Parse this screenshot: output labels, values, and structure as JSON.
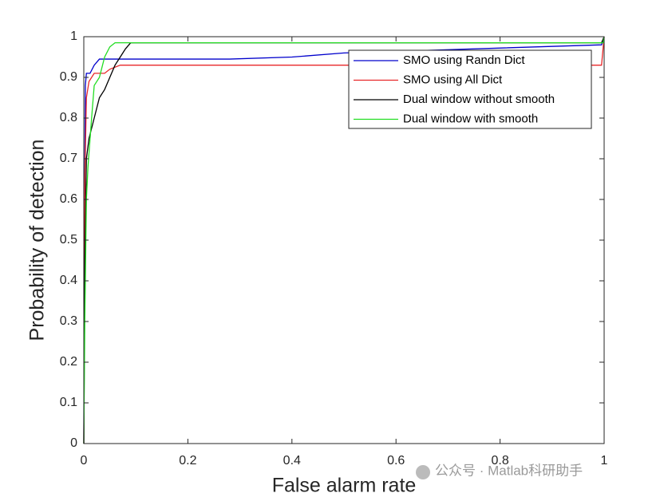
{
  "chart_data": {
    "type": "line",
    "xlabel": "False alarm rate",
    "ylabel": "Probability of detection",
    "xlim": [
      0,
      1
    ],
    "ylim": [
      0,
      1
    ],
    "xticks": [
      0,
      0.2,
      0.4,
      0.6,
      0.8,
      1
    ],
    "yticks": [
      0,
      0.1,
      0.2,
      0.3,
      0.4,
      0.5,
      0.6,
      0.7,
      0.8,
      0.9,
      1
    ],
    "grid": false,
    "legend": "northeast",
    "watermark": "公众号 · Matlab科研助手",
    "series": [
      {
        "name": "SMO using Randn Dict",
        "color": "#0000cc",
        "x": [
          0,
          0.001,
          0.003,
          0.005,
          0.012,
          0.02,
          0.03,
          0.28,
          0.4,
          0.5,
          0.995,
          1
        ],
        "values": [
          0,
          0.5,
          0.88,
          0.91,
          0.91,
          0.93,
          0.945,
          0.945,
          0.95,
          0.96,
          0.98,
          1
        ]
      },
      {
        "name": "SMO using All Dict",
        "color": "#e8282a",
        "x": [
          0,
          0.002,
          0.005,
          0.01,
          0.02,
          0.04,
          0.05,
          0.07,
          0.995,
          1
        ],
        "values": [
          0,
          0.65,
          0.85,
          0.89,
          0.91,
          0.91,
          0.92,
          0.93,
          0.93,
          1
        ]
      },
      {
        "name": "Dual window without smooth",
        "color": "#000000",
        "x": [
          0,
          0.002,
          0.005,
          0.01,
          0.02,
          0.03,
          0.04,
          0.05,
          0.06,
          0.07,
          0.08,
          0.09,
          0.995,
          1
        ],
        "values": [
          0,
          0.45,
          0.7,
          0.75,
          0.8,
          0.85,
          0.87,
          0.9,
          0.93,
          0.95,
          0.97,
          0.985,
          0.985,
          1
        ]
      },
      {
        "name": "Dual window with smooth",
        "color": "#22dd22",
        "x": [
          0,
          0.002,
          0.005,
          0.008,
          0.015,
          0.02,
          0.03,
          0.04,
          0.05,
          0.06,
          0.998,
          1
        ],
        "values": [
          0,
          0.3,
          0.6,
          0.68,
          0.8,
          0.88,
          0.9,
          0.95,
          0.975,
          0.985,
          0.985,
          1
        ]
      }
    ]
  }
}
